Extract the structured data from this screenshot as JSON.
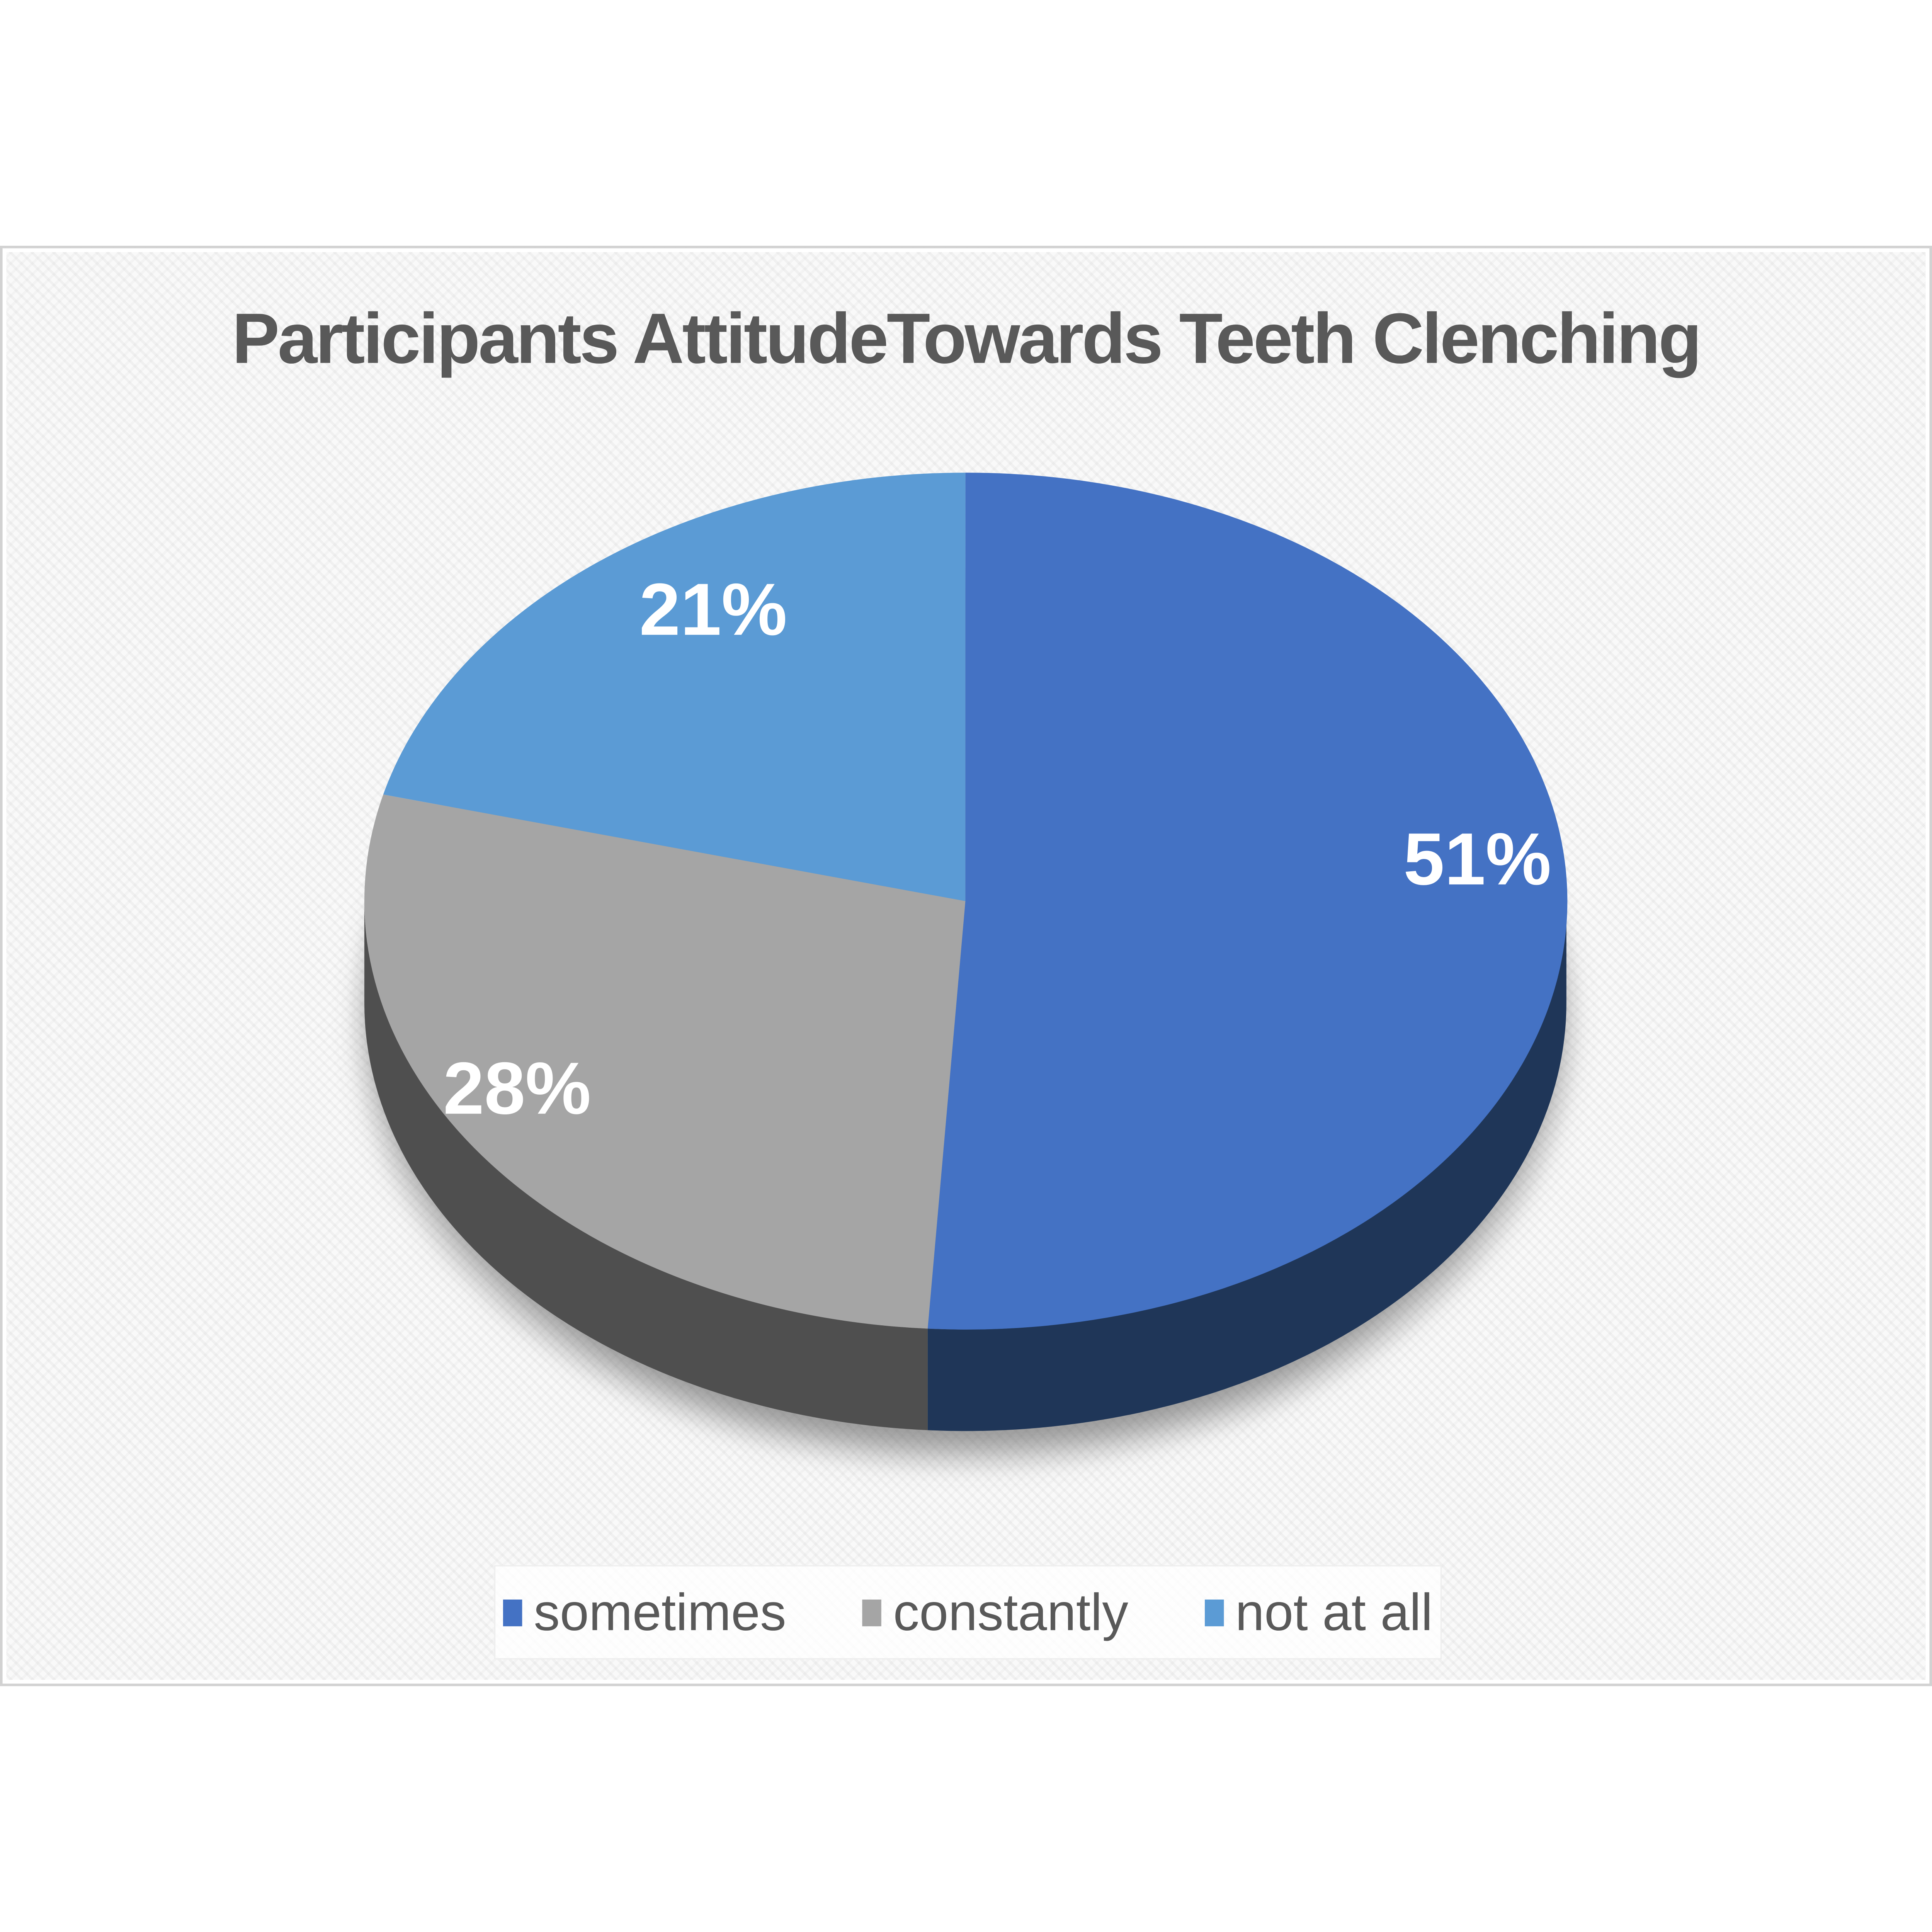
{
  "title": "Participants AttitudeTowards Teeth Clenching",
  "title_color": "#595959",
  "chart_data": {
    "type": "pie",
    "style": "3d",
    "start_angle_deg": 0,
    "direction": "clockwise",
    "title": "Participants AttitudeTowards Teeth Clenching",
    "categories": [
      "sometimes",
      "constantly",
      "not at all"
    ],
    "values": [
      51,
      28,
      21
    ],
    "labels": [
      "51%",
      "28%",
      "21%"
    ],
    "colors": [
      "#4472C4",
      "#A5A5A5",
      "#5B9BD5"
    ],
    "side_colors": [
      "#1F3658",
      "#4F4F4F",
      null
    ],
    "label_color": "#FFFFFF",
    "legend_position": "bottom",
    "legend_text_color": "#595959"
  }
}
